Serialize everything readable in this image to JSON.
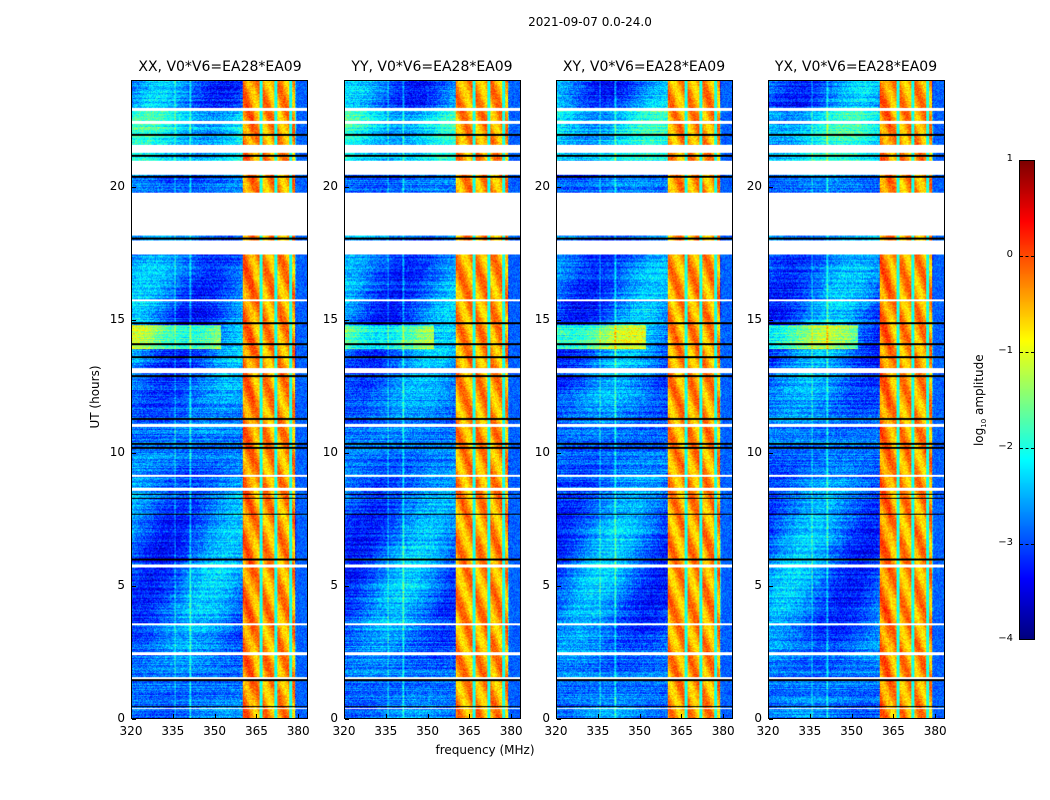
{
  "figure": {
    "suptitle": "2021-09-07 0.0-24.0",
    "xlabel": "frequency (MHz)",
    "ylabel": "UT (hours)",
    "colorbar_label_prefix": "log",
    "colorbar_label_sub": "10",
    "colorbar_label_suffix": " amplitude"
  },
  "chart_data": {
    "type": "heatmap",
    "title": "2021-09-07 0.0-24.0",
    "xlabel": "frequency (MHz)",
    "ylabel": "UT (hours)",
    "xlim": [
      320,
      383.5
    ],
    "ylim": [
      0,
      24
    ],
    "xticks": [
      "320",
      "335",
      "350",
      "365",
      "380"
    ],
    "yticks": [
      "0",
      "5",
      "10",
      "15",
      "20"
    ],
    "colormap": "jet",
    "colorbar": {
      "label": "log10 amplitude",
      "range": [
        -4,
        1
      ],
      "ticks": [
        "1",
        "0",
        "−1",
        "−2",
        "−3",
        "−4"
      ]
    },
    "panels": [
      {
        "name": "XX",
        "title": "XX, V0*V6=EA28*EA09"
      },
      {
        "name": "YY",
        "title": "YY, V0*V6=EA28*EA09"
      },
      {
        "name": "XY",
        "title": "XY, V0*V6=EA28*EA09"
      },
      {
        "name": "YX",
        "title": "YX, V0*V6=EA28*EA09"
      }
    ],
    "features": {
      "high_amplitude_band_MHz": [
        360,
        379
      ],
      "background_log_amplitude": -2.8,
      "band_log_amplitude": -0.4,
      "missing_data_hours": [
        [
          17.5,
          18.0
        ],
        [
          18.2,
          19.8
        ],
        [
          20.5,
          21.0
        ],
        [
          21.3,
          21.6
        ],
        [
          2.4,
          2.5
        ],
        [
          3.5,
          3.6
        ],
        [
          5.7,
          5.8
        ],
        [
          8.6,
          8.7
        ],
        [
          9.1,
          9.2
        ],
        [
          11.0,
          11.1
        ],
        [
          13.0,
          13.2
        ],
        [
          15.7,
          15.8
        ],
        [
          22.4,
          22.5
        ],
        [
          22.9,
          23.0
        ],
        [
          1.5,
          1.55
        ],
        [
          0.35,
          0.4
        ]
      ]
    }
  }
}
